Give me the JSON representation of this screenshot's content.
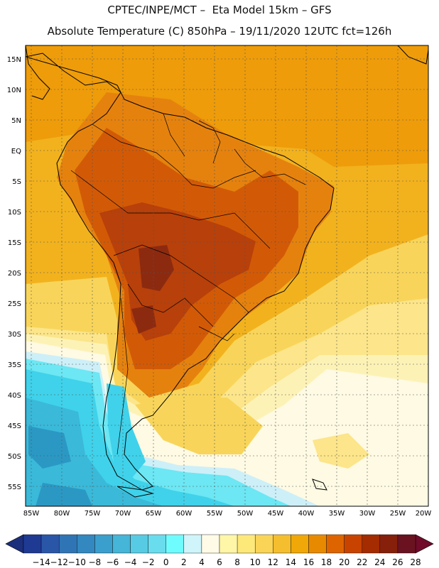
{
  "header": {
    "line1": "CPTEC/INPE/MCT –  Eta Model 15km – GFS",
    "line2": "Absolute Temperature (C) 850hPa – 19/11/2020 12UTC fct=126h"
  },
  "axes": {
    "lat_labels": [
      "15N",
      "10N",
      "5N",
      "EQ",
      "5S",
      "10S",
      "15S",
      "20S",
      "25S",
      "30S",
      "35S",
      "40S",
      "45S",
      "50S",
      "55S"
    ],
    "lon_labels": [
      "85W",
      "80W",
      "75W",
      "70W",
      "65W",
      "60W",
      "55W",
      "50W",
      "45W",
      "40W",
      "35W",
      "30W",
      "25W",
      "20W"
    ]
  },
  "colorbar": {
    "labels": [
      "-14",
      "-12",
      "-10",
      "-8",
      "-6",
      "-4",
      "-2",
      "0",
      "2",
      "4",
      "6",
      "8",
      "10",
      "12",
      "14",
      "16",
      "18",
      "20",
      "22",
      "24",
      "26",
      "28"
    ],
    "colors": [
      "#1f3a93",
      "#2a56a8",
      "#2f75b5",
      "#3388c0",
      "#3b9fcd",
      "#45b5d8",
      "#57cbe3",
      "#69dded",
      "#6ffcff",
      "#cff5fb",
      "#fffbe6",
      "#fff6a8",
      "#fde87a",
      "#fad457",
      "#f4be2e",
      "#f0a808",
      "#e88a00",
      "#de6400",
      "#c94300",
      "#a42c00",
      "#86200a",
      "#6a1220"
    ],
    "below_color": "#1b2f7c",
    "above_color": "#700b2a"
  },
  "legend": {
    "ocean_warm": "#f2b21e",
    "ocean_hot": "#ee9c0a",
    "land_warm": "#e5820e",
    "land_hot": "#d25a06",
    "land_core": "#b8400a",
    "core_max": "#8c2a10",
    "mid_yellow": "#f8d55a",
    "light_yellow": "#fce58a",
    "pale_yellow": "#fdf2b6",
    "cream": "#fefae3",
    "ice_blue": "#cdeff8",
    "aqua": "#6ce7f3",
    "cyan": "#3fd2ea",
    "teal": "#3ab9d9",
    "deep_teal": "#2b98c4"
  }
}
